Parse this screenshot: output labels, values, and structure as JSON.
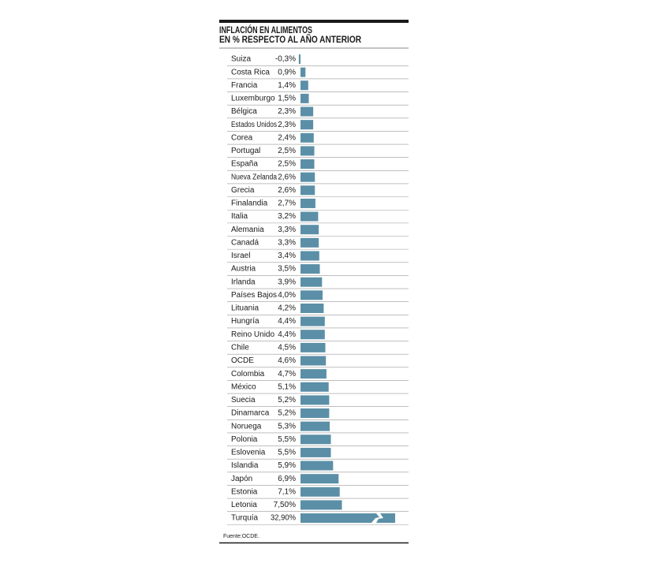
{
  "chart_data": {
    "type": "bar",
    "orientation": "horizontal",
    "title": [
      "INFLACIÓN EN ALIMENTOS",
      "EN % RESPECTO AL AÑO ANTERIOR"
    ],
    "categories": [
      "Suiza",
      "Costa Rica",
      "Francia",
      "Luxemburgo",
      "Bélgica",
      "Estados Unidos",
      "Corea",
      "Portugal",
      "España",
      "Nueva Zelanda",
      "Grecia",
      "Finalandia",
      "Italia",
      "Alemania",
      "Canadá",
      "Israel",
      "Austria",
      "Irlanda",
      "Países Bajos",
      "Lituania",
      "Hungría",
      "Reino Unido",
      "Chile",
      "OCDE",
      "Colombia",
      "México",
      "Suecia",
      "Dinamarca",
      "Noruega",
      "Polonia",
      "Eslovenia",
      "Islandia",
      "Japón",
      "Estonia",
      "Letonia",
      "Turquía"
    ],
    "values": [
      -0.3,
      0.9,
      1.4,
      1.5,
      2.3,
      2.3,
      2.4,
      2.5,
      2.5,
      2.6,
      2.6,
      2.7,
      3.2,
      3.3,
      3.3,
      3.4,
      3.5,
      3.9,
      4.0,
      4.2,
      4.4,
      4.4,
      4.5,
      4.6,
      4.7,
      5.1,
      5.2,
      5.2,
      5.3,
      5.5,
      5.5,
      5.9,
      6.9,
      7.1,
      7.5,
      32.9
    ],
    "value_labels": [
      "-0,3%",
      "0,9%",
      "1,4%",
      "1,5%",
      "2,3%",
      "2,3%",
      "2,4%",
      "2,5%",
      "2,5%",
      "2,6%",
      "2,6%",
      "2,7%",
      "3,2%",
      "3,3%",
      "3,3%",
      "3,4%",
      "3,5%",
      "3,9%",
      "4,0%",
      "4,2%",
      "4,4%",
      "4,4%",
      "4,5%",
      "4,6%",
      "4,7%",
      "5,1%",
      "5,2%",
      "5,2%",
      "5,3%",
      "5,5%",
      "5,5%",
      "5,9%",
      "6,9%",
      "7,1%",
      "7,50%",
      "32,90%"
    ],
    "color": "#5b8fa7",
    "source": "Fuente:OCDE."
  }
}
